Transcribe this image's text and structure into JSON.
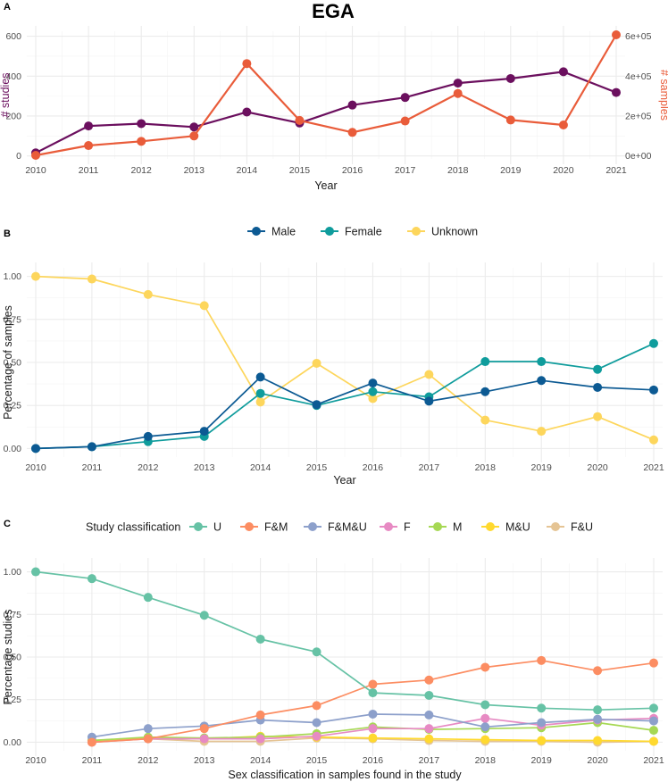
{
  "chart_data": [
    {
      "panel": "A",
      "type": "line",
      "title": "EGA",
      "xlabel": "Year",
      "ylabel": "# studies",
      "ylabel_right": "# samples",
      "x": [
        2010,
        2011,
        2012,
        2013,
        2014,
        2015,
        2016,
        2017,
        2018,
        2019,
        2020,
        2021
      ],
      "ylim": [
        -15,
        625
      ],
      "y_ticks": [
        "0",
        "200",
        "400",
        "600"
      ],
      "y_right_ticks": [
        "0e+00",
        "2e+05",
        "4e+05",
        "6e+05"
      ],
      "grid": true,
      "series": [
        {
          "axis": "left",
          "color": "#6b0f5e",
          "values": [
            15,
            150,
            162,
            145,
            220,
            165,
            255,
            293,
            365,
            388,
            422,
            318
          ]
        },
        {
          "axis": "right",
          "color": "#e95c3a",
          "values": [
            3000,
            52000,
            73000,
            100000,
            463000,
            178000,
            118000,
            175000,
            313000,
            180000,
            155000,
            607000
          ]
        }
      ]
    },
    {
      "panel": "B",
      "type": "line",
      "xlabel": "Year",
      "ylabel": "Percentage of samples",
      "x": [
        2010,
        2011,
        2012,
        2013,
        2014,
        2015,
        2016,
        2017,
        2018,
        2019,
        2020,
        2021
      ],
      "ylim": [
        -0.05,
        1.05
      ],
      "y_ticks": [
        "0.00",
        "0.25",
        "0.50",
        "0.75",
        "1.00"
      ],
      "grid": true,
      "legend_position": "top",
      "series": [
        {
          "name": "Male",
          "color": "#0c5a93",
          "values": [
            0.0,
            0.01,
            0.07,
            0.1,
            0.415,
            0.255,
            0.38,
            0.275,
            0.33,
            0.395,
            0.355,
            0.34
          ]
        },
        {
          "name": "Female",
          "color": "#0f9c9c",
          "values": [
            0.0,
            0.01,
            0.04,
            0.07,
            0.32,
            0.25,
            0.33,
            0.3,
            0.505,
            0.505,
            0.46,
            0.61
          ]
        },
        {
          "name": "Unknown",
          "color": "#fdd65c",
          "values": [
            1.0,
            0.985,
            0.895,
            0.83,
            0.27,
            0.495,
            0.29,
            0.43,
            0.165,
            0.1,
            0.185,
            0.05
          ]
        }
      ]
    },
    {
      "panel": "C",
      "type": "line",
      "xlabel": "Sex classification in samples found in the study",
      "ylabel": "Percentage studies",
      "legend_title": "Study classification",
      "x": [
        2010,
        2011,
        2012,
        2013,
        2014,
        2015,
        2016,
        2017,
        2018,
        2019,
        2020,
        2021
      ],
      "ylim": [
        -0.05,
        1.05
      ],
      "y_ticks": [
        "0.00",
        "0.25",
        "0.50",
        "0.75",
        "1.00"
      ],
      "grid": true,
      "legend_position": "top",
      "series": [
        {
          "name": "U",
          "color": "#66c2a5",
          "values": [
            1.0,
            0.96,
            0.85,
            0.745,
            0.605,
            0.53,
            0.29,
            0.275,
            0.22,
            0.2,
            0.19,
            0.2
          ]
        },
        {
          "name": "F&M",
          "color": "#fc8d62",
          "values": [
            null,
            0.0,
            0.02,
            0.08,
            0.16,
            0.215,
            0.34,
            0.365,
            0.44,
            0.48,
            0.42,
            0.465
          ]
        },
        {
          "name": "F&M&U",
          "color": "#8da0cb",
          "values": [
            null,
            0.03,
            0.08,
            0.095,
            0.13,
            0.115,
            0.165,
            0.16,
            0.09,
            0.115,
            0.135,
            0.125
          ]
        },
        {
          "name": "F",
          "color": "#e78ac3",
          "values": [
            null,
            0.0,
            0.02,
            0.02,
            0.02,
            0.035,
            0.08,
            0.08,
            0.14,
            0.1,
            0.13,
            0.14
          ]
        },
        {
          "name": "M",
          "color": "#a6d854",
          "values": [
            null,
            0.01,
            0.03,
            0.025,
            0.03,
            0.05,
            0.09,
            0.075,
            0.08,
            0.085,
            0.115,
            0.07
          ]
        },
        {
          "name": "M&U",
          "color": "#ffd92f",
          "values": [
            null,
            0.01,
            0.025,
            0.02,
            0.035,
            0.03,
            0.025,
            0.02,
            0.015,
            0.01,
            0.01,
            0.005
          ]
        },
        {
          "name": "F&U",
          "color": "#e5c494",
          "values": [
            null,
            0.005,
            0.02,
            0.005,
            0.005,
            0.025,
            0.02,
            0.01,
            0.005,
            0.005,
            0.0,
            0.005
          ]
        }
      ]
    }
  ]
}
